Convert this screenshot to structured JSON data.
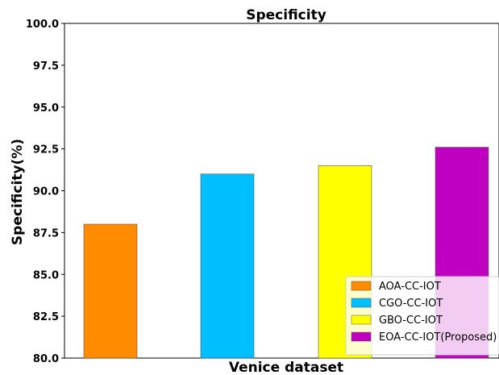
{
  "chart_data": {
    "type": "bar",
    "title": "Specificity",
    "xlabel": "Venice dataset",
    "ylabel": "Specificity(%)",
    "ylim": [
      80.0,
      100.0
    ],
    "yticks": [
      "80.0",
      "82.5",
      "85.0",
      "87.5",
      "90.0",
      "92.5",
      "95.0",
      "97.5",
      "100.0"
    ],
    "categories": [
      "AOA-CC-IOT",
      "CGO-CC-IOT",
      "GBO-CC-IOT",
      "EOA-CC-IOT(Proposed)"
    ],
    "series": [
      {
        "name": "AOA-CC-IOT",
        "value": 88.0,
        "color": "#ff8c00"
      },
      {
        "name": "CGO-CC-IOT",
        "value": 91.0,
        "color": "#00bfff"
      },
      {
        "name": "GBO-CC-IOT",
        "value": 91.5,
        "color": "#ffff00"
      },
      {
        "name": "EOA-CC-IOT(Proposed)",
        "value": 92.6,
        "color": "#c000c0"
      }
    ],
    "legend_position": "bottom-right",
    "grid": false
  }
}
